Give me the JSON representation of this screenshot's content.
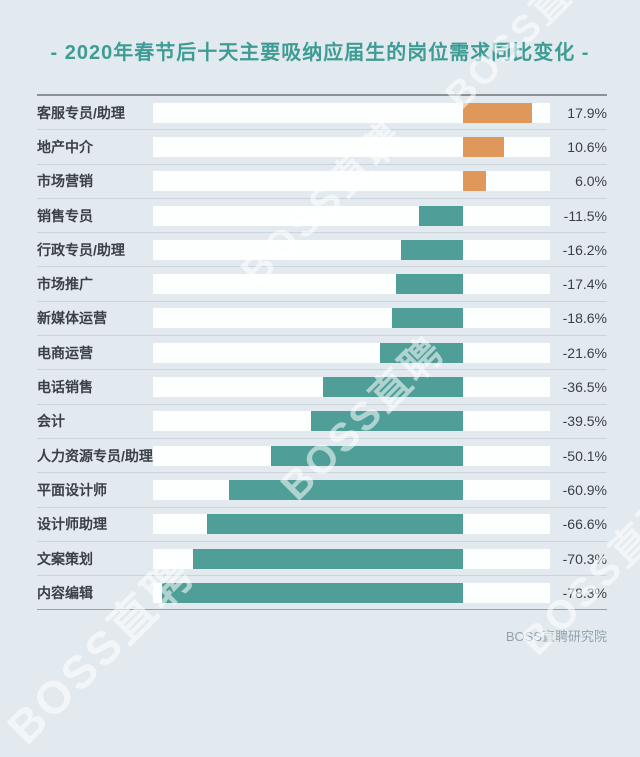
{
  "title": "- 2020年春节后十天主要吸纳应届生的岗位需求同比变化 -",
  "source": "BOSS直聘研究院",
  "watermark": "BOSS直聘",
  "colors": {
    "background": "#e2eaef",
    "positive": "#e0985a",
    "negative": "#4f9e97",
    "title": "#3f9c95",
    "track": "#fdfefe",
    "label_text": "#3a4046",
    "source_text": "#93a2ad"
  },
  "chart_data": {
    "type": "bar",
    "orientation": "horizontal",
    "title": "2020年春节后十天主要吸纳应届生的岗位需求同比变化",
    "xlabel": "",
    "ylabel": "",
    "unit": "%",
    "xlim": [
      -80.7,
      22.7
    ],
    "zero_position_ratio": 0.781,
    "grid": false,
    "legend": null,
    "categories": [
      "客服专员/助理",
      "地产中介",
      "市场营销",
      "销售专员",
      "行政专员/助理",
      "市场推广",
      "新媒体运营",
      "电商运营",
      "电话销售",
      "会计",
      "人力资源专员/助理",
      "平面设计师",
      "设计师助理",
      "文案策划",
      "内容编辑"
    ],
    "values": [
      17.9,
      10.6,
      6.0,
      -11.5,
      -16.2,
      -17.4,
      -18.6,
      -21.6,
      -36.5,
      -39.5,
      -50.1,
      -60.9,
      -66.6,
      -70.3,
      -78.3
    ],
    "value_labels": [
      "17.9%",
      "10.6%",
      "6.0%",
      "-11.5%",
      "-16.2%",
      "-17.4%",
      "-18.6%",
      "-21.6%",
      "-36.5%",
      "-39.5%",
      "-50.1%",
      "-60.9%",
      "-66.6%",
      "-70.3%",
      "-78.3%"
    ]
  }
}
